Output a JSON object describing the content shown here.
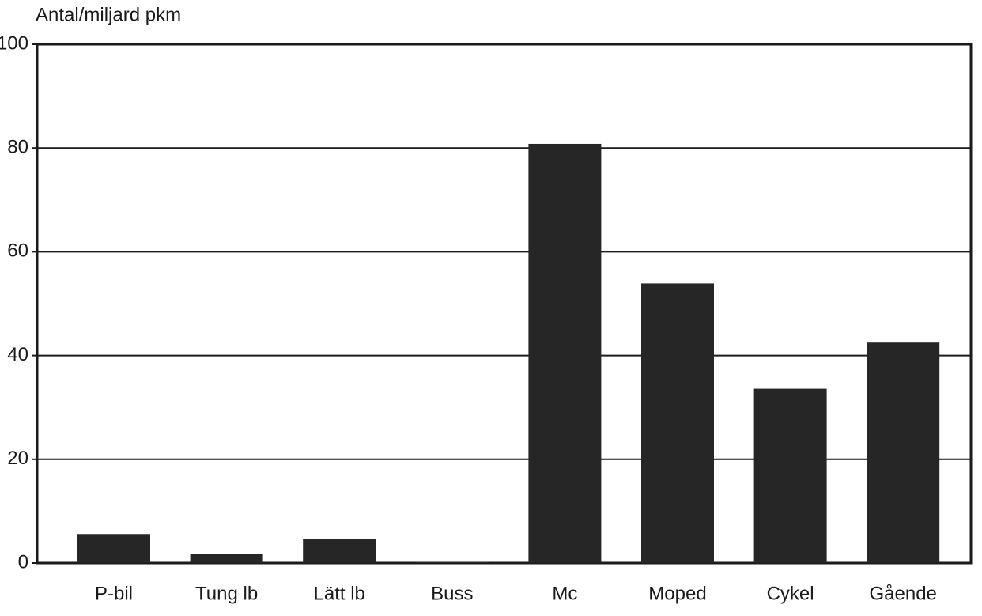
{
  "chart_data": {
    "type": "bar",
    "y_label": "Antal/miljard pkm",
    "categories": [
      "P-bil",
      "Tung lb",
      "Lätt lb",
      "Buss",
      "Mc",
      "Moped",
      "Cykel",
      "Gående"
    ],
    "values": [
      5.6,
      1.8,
      4.7,
      0.2,
      80.8,
      53.9,
      33.6,
      42.5
    ],
    "color": "#262626",
    "ylim": [
      0,
      100
    ],
    "yticks": [
      0,
      20,
      40,
      60,
      80,
      100
    ],
    "grid": true
  }
}
